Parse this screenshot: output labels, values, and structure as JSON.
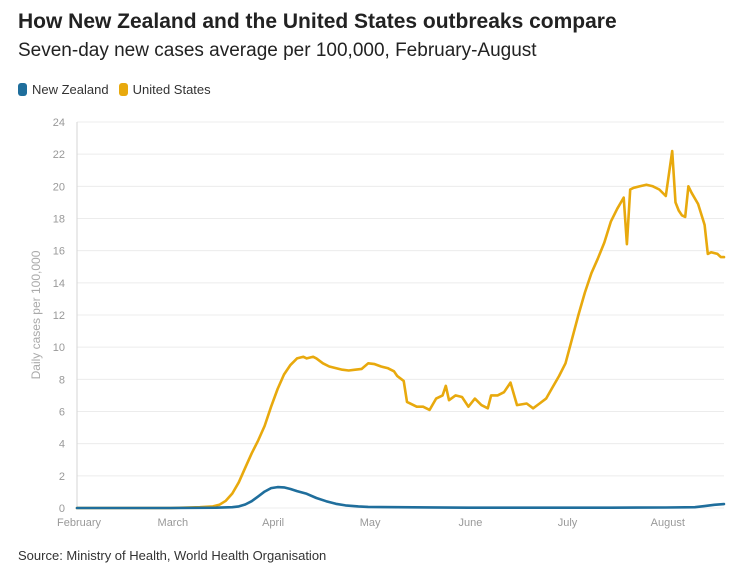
{
  "title": "How New Zealand and the United States outbreaks compare",
  "subtitle": "Seven-day new cases average per 100,000, February-August",
  "source": "Source: Ministry of Health, World Health Organisation",
  "legend": [
    {
      "name": "New Zealand",
      "color": "#1f6e9c"
    },
    {
      "name": "United States",
      "color": "#e8a90d"
    }
  ],
  "chart_data": {
    "type": "line",
    "xlabel": "",
    "ylabel": "Daily cases per 100,000",
    "ylim": [
      0,
      24
    ],
    "yticks": [
      0,
      2,
      4,
      6,
      8,
      10,
      12,
      14,
      16,
      18,
      20,
      22,
      24
    ],
    "xlim": [
      "2020-02-01",
      "2020-08-19"
    ],
    "xticks": [
      {
        "label": "February",
        "date": "2020-02-01"
      },
      {
        "label": "March",
        "date": "2020-03-01"
      },
      {
        "label": "April",
        "date": "2020-04-01"
      },
      {
        "label": "May",
        "date": "2020-05-01"
      },
      {
        "label": "June",
        "date": "2020-06-01"
      },
      {
        "label": "July",
        "date": "2020-07-01"
      },
      {
        "label": "August",
        "date": "2020-08-01"
      }
    ],
    "grid": true,
    "legend_position": "top-left",
    "series": [
      {
        "name": "New Zealand",
        "color": "#1f6e9c",
        "x": [
          "2020-02-01",
          "2020-02-15",
          "2020-03-01",
          "2020-03-15",
          "2020-03-20",
          "2020-03-22",
          "2020-03-24",
          "2020-03-26",
          "2020-03-28",
          "2020-03-30",
          "2020-04-01",
          "2020-04-03",
          "2020-04-05",
          "2020-04-07",
          "2020-04-09",
          "2020-04-12",
          "2020-04-15",
          "2020-04-18",
          "2020-04-21",
          "2020-04-24",
          "2020-04-28",
          "2020-05-01",
          "2020-05-10",
          "2020-05-20",
          "2020-06-01",
          "2020-06-15",
          "2020-07-01",
          "2020-07-15",
          "2020-08-01",
          "2020-08-10",
          "2020-08-13",
          "2020-08-16",
          "2020-08-19"
        ],
        "values": [
          0,
          0,
          0,
          0.02,
          0.05,
          0.1,
          0.22,
          0.42,
          0.72,
          1.02,
          1.24,
          1.3,
          1.28,
          1.18,
          1.05,
          0.88,
          0.62,
          0.42,
          0.26,
          0.16,
          0.1,
          0.07,
          0.05,
          0.04,
          0.02,
          0.02,
          0.02,
          0.02,
          0.03,
          0.05,
          0.12,
          0.2,
          0.24
        ]
      },
      {
        "name": "United States",
        "color": "#e8a90d",
        "x": [
          "2020-02-01",
          "2020-02-20",
          "2020-03-01",
          "2020-03-10",
          "2020-03-14",
          "2020-03-16",
          "2020-03-18",
          "2020-03-20",
          "2020-03-22",
          "2020-03-24",
          "2020-03-26",
          "2020-03-28",
          "2020-03-30",
          "2020-04-01",
          "2020-04-03",
          "2020-04-05",
          "2020-04-07",
          "2020-04-09",
          "2020-04-11",
          "2020-04-12",
          "2020-04-14",
          "2020-04-15",
          "2020-04-17",
          "2020-04-19",
          "2020-04-21",
          "2020-04-23",
          "2020-04-25",
          "2020-04-27",
          "2020-04-29",
          "2020-05-01",
          "2020-05-03",
          "2020-05-05",
          "2020-05-07",
          "2020-05-09",
          "2020-05-10",
          "2020-05-12",
          "2020-05-13",
          "2020-05-16",
          "2020-05-18",
          "2020-05-20",
          "2020-05-22",
          "2020-05-24",
          "2020-05-25",
          "2020-05-26",
          "2020-05-28",
          "2020-05-30",
          "2020-06-01",
          "2020-06-03",
          "2020-06-05",
          "2020-06-07",
          "2020-06-08",
          "2020-06-09",
          "2020-06-10",
          "2020-06-12",
          "2020-06-14",
          "2020-06-16",
          "2020-06-19",
          "2020-06-21",
          "2020-06-23",
          "2020-06-25",
          "2020-06-27",
          "2020-06-29",
          "2020-07-01",
          "2020-07-03",
          "2020-07-05",
          "2020-07-07",
          "2020-07-09",
          "2020-07-11",
          "2020-07-13",
          "2020-07-15",
          "2020-07-17",
          "2020-07-19",
          "2020-07-20",
          "2020-07-21",
          "2020-07-22",
          "2020-07-24",
          "2020-07-26",
          "2020-07-28",
          "2020-07-30",
          "2020-08-01",
          "2020-08-03",
          "2020-08-04",
          "2020-08-05",
          "2020-08-06",
          "2020-08-07",
          "2020-08-08",
          "2020-08-09",
          "2020-08-11",
          "2020-08-13",
          "2020-08-14",
          "2020-08-15",
          "2020-08-17",
          "2020-08-18",
          "2020-08-19"
        ],
        "values": [
          0,
          0,
          0,
          0.05,
          0.1,
          0.2,
          0.45,
          0.9,
          1.6,
          2.5,
          3.4,
          4.2,
          5.1,
          6.3,
          7.4,
          8.3,
          8.9,
          9.3,
          9.4,
          9.3,
          9.4,
          9.3,
          9.0,
          8.8,
          8.7,
          8.6,
          8.55,
          8.6,
          8.65,
          9.0,
          8.95,
          8.8,
          8.7,
          8.5,
          8.2,
          7.9,
          6.6,
          6.3,
          6.3,
          6.1,
          6.8,
          7.0,
          7.6,
          6.7,
          7.0,
          6.9,
          6.3,
          6.8,
          6.4,
          6.2,
          7.0,
          7.0,
          7.0,
          7.2,
          7.8,
          6.4,
          6.5,
          6.2,
          6.5,
          6.8,
          7.5,
          8.2,
          9.0,
          10.5,
          12.0,
          13.4,
          14.6,
          15.5,
          16.5,
          17.8,
          18.6,
          19.3,
          16.4,
          19.8,
          19.9,
          20.0,
          20.1,
          20.0,
          19.8,
          19.4,
          22.2,
          19.0,
          18.5,
          18.2,
          18.1,
          20.0,
          19.6,
          18.9,
          17.6,
          15.8,
          15.9,
          15.8,
          15.6,
          15.6
        ]
      }
    ]
  }
}
